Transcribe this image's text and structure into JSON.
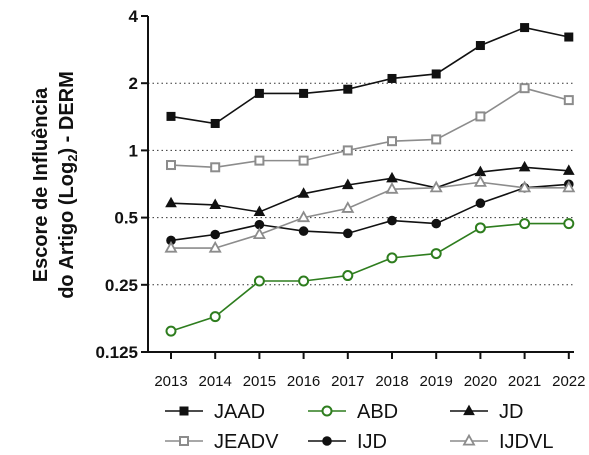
{
  "chart_data": {
    "type": "line",
    "title": "",
    "ylabel_line1": "Escore de Influência",
    "ylabel_line2_prefix": "do Artigo (Log",
    "ylabel_line2_sub": "2",
    "ylabel_line2_suffix": ") - DERM",
    "xlabel": "",
    "y_scale": "log2",
    "ylim": [
      0.125,
      4
    ],
    "y_ticks": [
      0.125,
      0.25,
      0.5,
      1,
      2,
      4
    ],
    "y_tick_labels": [
      "0.125",
      "0.25",
      "0.5",
      "1",
      "2",
      "4"
    ],
    "y_gridlines": [
      0.25,
      0.5,
      1,
      2
    ],
    "x": [
      "2013",
      "2014",
      "2015",
      "2016",
      "2017",
      "2018",
      "2019",
      "2020",
      "2021",
      "2022"
    ],
    "series": [
      {
        "name": "JAAD",
        "color": "#111111",
        "marker": "square-filled",
        "values": [
          1.42,
          1.32,
          1.8,
          1.8,
          1.88,
          2.1,
          2.2,
          2.95,
          3.55,
          3.22
        ]
      },
      {
        "name": "JEADV",
        "color": "#8c8c8c",
        "marker": "square-open",
        "values": [
          0.86,
          0.84,
          0.9,
          0.9,
          1.0,
          1.1,
          1.12,
          1.42,
          1.9,
          1.68
        ]
      },
      {
        "name": "ABD",
        "color": "#2e7d1e",
        "marker": "circle-open",
        "values": [
          0.155,
          0.18,
          0.26,
          0.26,
          0.275,
          0.33,
          0.345,
          0.45,
          0.47,
          0.47
        ]
      },
      {
        "name": "IJD",
        "color": "#111111",
        "marker": "circle-filled",
        "values": [
          0.395,
          0.42,
          0.465,
          0.435,
          0.425,
          0.485,
          0.47,
          0.58,
          0.68,
          0.705
        ]
      },
      {
        "name": "JD",
        "color": "#111111",
        "marker": "triangle-filled",
        "values": [
          0.58,
          0.57,
          0.53,
          0.64,
          0.7,
          0.75,
          0.68,
          0.8,
          0.84,
          0.81
        ]
      },
      {
        "name": "IJDVL",
        "color": "#8c8c8c",
        "marker": "triangle-open",
        "values": [
          0.365,
          0.365,
          0.42,
          0.5,
          0.55,
          0.67,
          0.68,
          0.72,
          0.68,
          0.68
        ]
      }
    ],
    "grid": "dotted horizontal",
    "legend_position": "bottom"
  },
  "legend": {
    "row1": [
      "JAAD",
      "ABD",
      "JD"
    ],
    "row2": [
      "JEADV",
      "IJD",
      "IJDVL"
    ]
  }
}
